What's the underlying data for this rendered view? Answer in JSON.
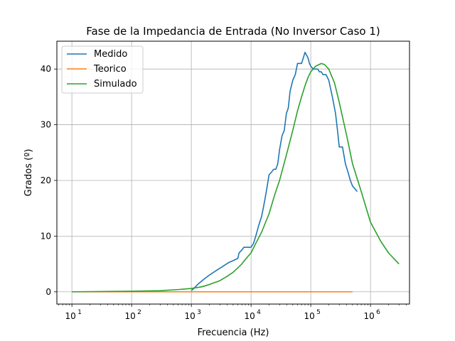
{
  "chart_data": {
    "type": "line",
    "title": "Fase de la Impedancia de Entrada (No Inversor Caso 1)",
    "xlabel": "Frecuencia (Hz)",
    "ylabel": "Grados (º)",
    "xscale": "log",
    "xlim": [
      5.6,
      4500000
    ],
    "ylim": [
      -2.2,
      45
    ],
    "xticks": [
      {
        "base": "10",
        "exp": "1"
      },
      {
        "base": "10",
        "exp": "2"
      },
      {
        "base": "10",
        "exp": "3"
      },
      {
        "base": "10",
        "exp": "4"
      },
      {
        "base": "10",
        "exp": "5"
      },
      {
        "base": "10",
        "exp": "6"
      }
    ],
    "xtick_values": [
      10,
      100,
      1000,
      10000,
      100000,
      1000000
    ],
    "yticks": [
      "0",
      "10",
      "20",
      "30",
      "40"
    ],
    "ytick_values": [
      0,
      10,
      20,
      30,
      40
    ],
    "grid": true,
    "legend_position": "top-left",
    "series": [
      {
        "name": "Medido",
        "color": "#1f77b4",
        "x": [
          1000,
          1100,
          1300,
          1600,
          2000,
          2600,
          3400,
          4300,
          5000,
          6000,
          6300,
          7000,
          7600,
          9000,
          10000,
          11000,
          12000,
          13500,
          15000,
          16000,
          17000,
          18000,
          20000,
          22000,
          24000,
          26000,
          28000,
          30000,
          33000,
          36000,
          39000,
          42000,
          45000,
          50000,
          55000,
          60000,
          63000,
          66000,
          70000,
          75000,
          80000,
          85000,
          90000,
          95000,
          100000,
          110000,
          120000,
          130000,
          140000,
          150000,
          160000,
          180000,
          200000,
          230000,
          260000,
          280000,
          300000,
          320000,
          340000,
          380000,
          420000,
          460000,
          500000,
          600000
        ],
        "y": [
          0.2,
          0.6,
          1.4,
          2.2,
          3,
          3.8,
          4.6,
          5.3,
          5.6,
          6,
          7,
          7.5,
          8,
          8,
          8,
          8.7,
          10,
          12,
          13.5,
          15,
          16.5,
          18,
          21,
          21.5,
          22,
          22,
          23,
          25.5,
          28,
          29,
          32,
          33,
          36,
          38,
          39,
          41,
          41,
          41,
          41,
          42,
          43,
          42.5,
          42,
          41,
          40.5,
          40,
          40,
          40,
          39.5,
          39.5,
          39,
          39,
          38,
          35,
          32,
          29,
          26,
          26,
          26,
          23,
          21.5,
          20,
          19,
          18
        ]
      },
      {
        "name": "Teorico",
        "color": "#ff7f0e",
        "x": [
          10,
          100,
          1000,
          10000,
          100000,
          500000
        ],
        "y": [
          0,
          0,
          0,
          0,
          0,
          0
        ]
      },
      {
        "name": "Simulado",
        "color": "#2ca02c",
        "x": [
          10,
          100,
          300,
          600,
          1000,
          1500,
          2000,
          3000,
          4000,
          5000,
          6000,
          7000,
          8000,
          10000,
          12000,
          15000,
          20000,
          25000,
          30000,
          40000,
          50000,
          60000,
          70000,
          80000,
          90000,
          100000,
          120000,
          150000,
          170000,
          200000,
          250000,
          300000,
          400000,
          500000,
          700000,
          1000000,
          1500000,
          2000000,
          3000000
        ],
        "y": [
          0,
          0.1,
          0.2,
          0.4,
          0.6,
          0.9,
          1.3,
          2,
          2.8,
          3.5,
          4.3,
          5,
          5.8,
          7,
          8.7,
          10.7,
          14,
          17.5,
          20,
          25,
          29,
          32.5,
          35,
          37,
          38.5,
          39.5,
          40.5,
          41,
          40.8,
          40,
          37.5,
          34,
          28,
          23,
          18,
          12.5,
          9,
          7,
          5
        ]
      }
    ]
  }
}
